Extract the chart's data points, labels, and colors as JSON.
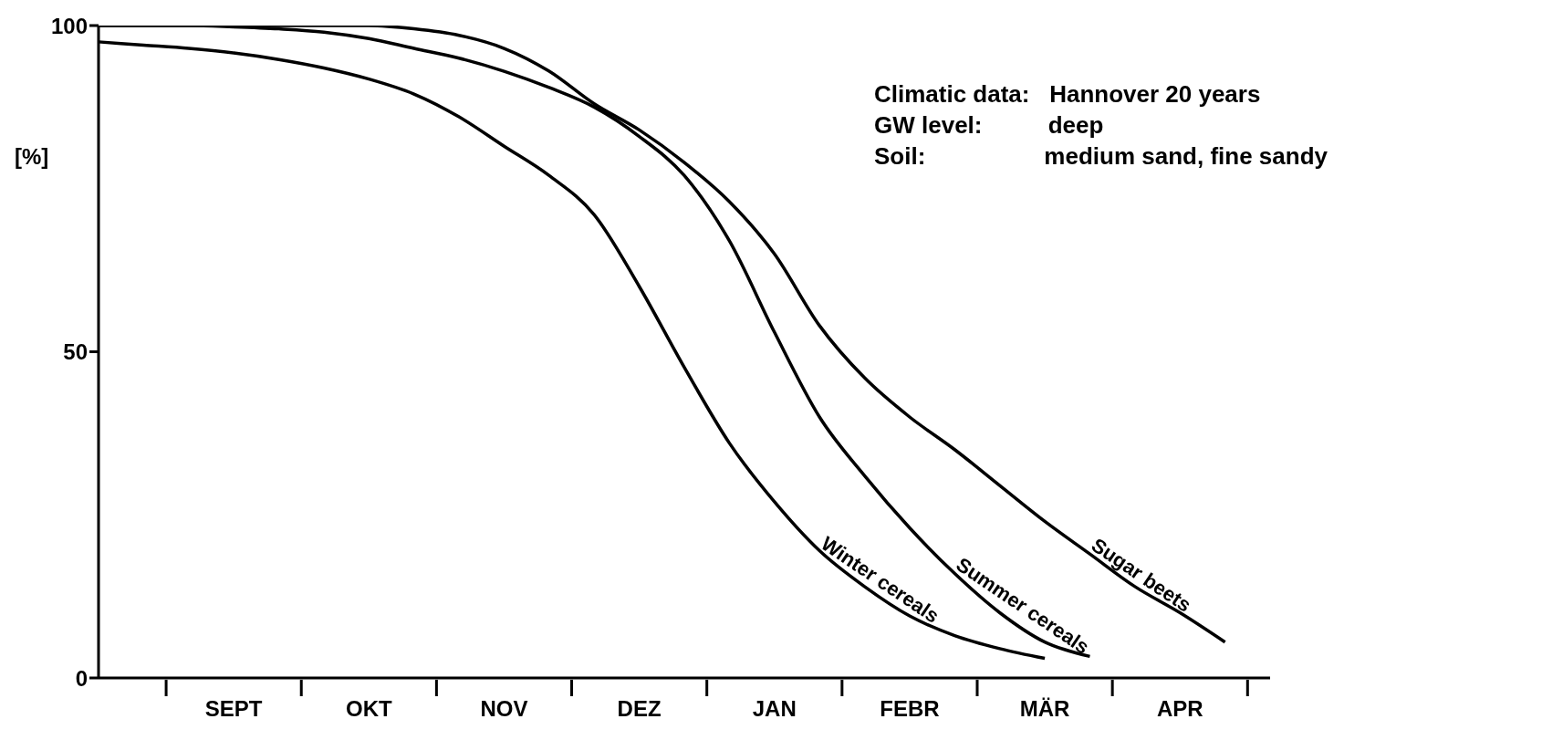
{
  "chart_data": {
    "type": "line",
    "ylabel": "[%]",
    "categories": [
      null,
      null,
      null,
      "SEPT",
      null,
      null,
      "OKT",
      null,
      null,
      "NOV",
      null,
      null,
      "DEZ",
      null,
      null,
      "JAN",
      null,
      null,
      "FEBR",
      null,
      null,
      "MÄR",
      null,
      null,
      "APR",
      null,
      null
    ],
    "ylim": [
      0,
      100
    ],
    "yticks": [
      0,
      50,
      100
    ],
    "grid": false,
    "legend": false,
    "marker": "none",
    "line_style": "solid",
    "annotations": [
      "Climatic data:   Hannover 20 years",
      "GW level:          deep",
      "Soil:                  medium sand, fine sandy"
    ],
    "series": [
      {
        "name": "Sugar beets",
        "color": "#000000",
        "values": [
          100,
          100,
          100,
          100,
          100,
          100,
          100,
          99.5,
          98.5,
          96.5,
          93,
          88,
          84,
          79,
          73,
          65,
          54,
          46,
          40,
          35,
          29.5,
          24,
          19,
          14,
          10,
          5.5,
          null
        ]
      },
      {
        "name": "Summer cereals",
        "color": "#000000",
        "values": [
          100,
          100,
          100,
          99.8,
          99.5,
          99,
          98,
          96.5,
          95,
          93,
          90.5,
          87.5,
          83,
          77,
          67,
          53,
          40,
          31,
          23,
          16,
          10,
          5.5,
          3.3,
          null,
          null,
          null,
          null
        ]
      },
      {
        "name": "Winter cereals",
        "color": "#000000",
        "values": [
          97.5,
          97,
          96.5,
          95.8,
          94.8,
          93.5,
          91.8,
          89.5,
          86,
          81.5,
          77,
          71,
          60,
          47.6,
          36,
          27,
          19.5,
          14,
          9.5,
          6.5,
          4.5,
          3,
          null,
          null,
          null,
          null,
          null
        ]
      }
    ]
  }
}
